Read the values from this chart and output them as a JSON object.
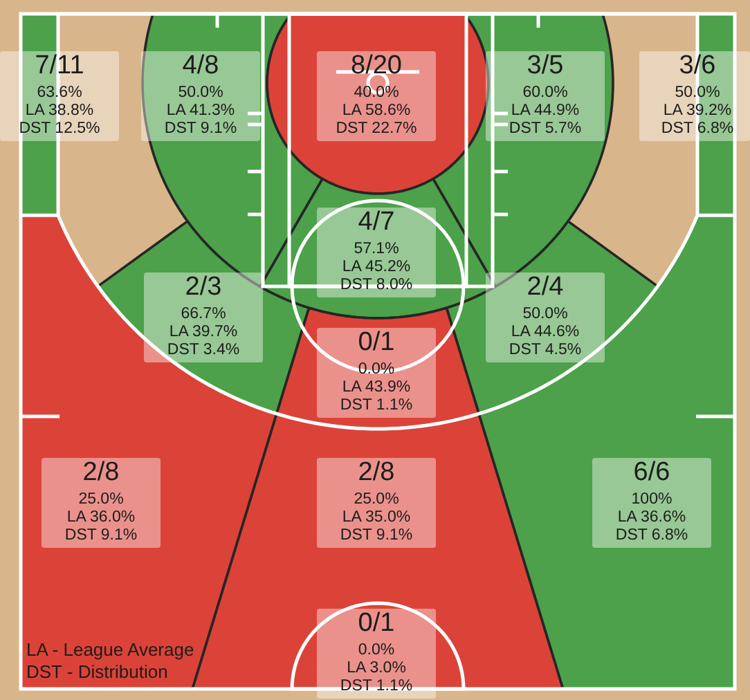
{
  "chart_data": {
    "type": "other",
    "categories": [
      "7/11",
      "4/8",
      "8/20",
      "3/5",
      "3/6",
      "4/7",
      "2/3",
      "2/4",
      "0/1",
      "2/8",
      "2/8",
      "6/6",
      "0/1"
    ],
    "series": [
      {
        "values": [
          63.6,
          50.0,
          40.0,
          60.0,
          50.0,
          57.1,
          66.7,
          50.0,
          0.0,
          25.0,
          25.0,
          100,
          0.0
        ],
        "value_labels": [
          "63.6%",
          "50.0%",
          "40.0%",
          "60.0%",
          "50.0%",
          "57.1%",
          "66.7%",
          "50.0%",
          "0.0%",
          "25.0%",
          "25.0%",
          "100%",
          "0.0%"
        ],
        "colors": [
          "#4ca14a",
          "#4ca14a",
          "#dc4338",
          "#4ca14a",
          "#4ca14a",
          "#4ca14a",
          "#4ca14a",
          "#4ca14a",
          "#dc4338",
          "#dc4338",
          "#dc4338",
          "#4ca14a",
          "#dc4338"
        ]
      },
      {
        "values": [
          38.8,
          41.3,
          58.6,
          44.9,
          39.2,
          45.2,
          39.7,
          44.6,
          43.9,
          36.0,
          35.0,
          36.6,
          3.0
        ],
        "value_labels": [
          "LA 38.8%",
          "LA 41.3%",
          "LA 58.6%",
          "LA 44.9%",
          "LA 39.2%",
          "LA 45.2%",
          "LA 39.7%",
          "LA 44.6%",
          "LA 43.9%",
          "LA 36.0%",
          "LA 35.0%",
          "LA 36.6%",
          "LA 3.0%"
        ]
      },
      {
        "values": [
          12.5,
          9.1,
          22.7,
          5.7,
          6.8,
          8.0,
          3.4,
          4.5,
          1.1,
          9.1,
          9.1,
          6.8,
          1.1
        ],
        "value_labels": [
          "DST 12.5%",
          "DST 9.1%",
          "DST 22.7%",
          "DST 5.7%",
          "DST 6.8%",
          "DST 8.0%",
          "DST 3.4%",
          "DST 4.5%",
          "DST 1.1%",
          "DST 9.1%",
          "DST 9.1%",
          "DST 6.8%",
          "DST 1.1%"
        ]
      }
    ],
    "annotations": [
      "LA - League Average",
      "DST - Distribution"
    ]
  }
}
